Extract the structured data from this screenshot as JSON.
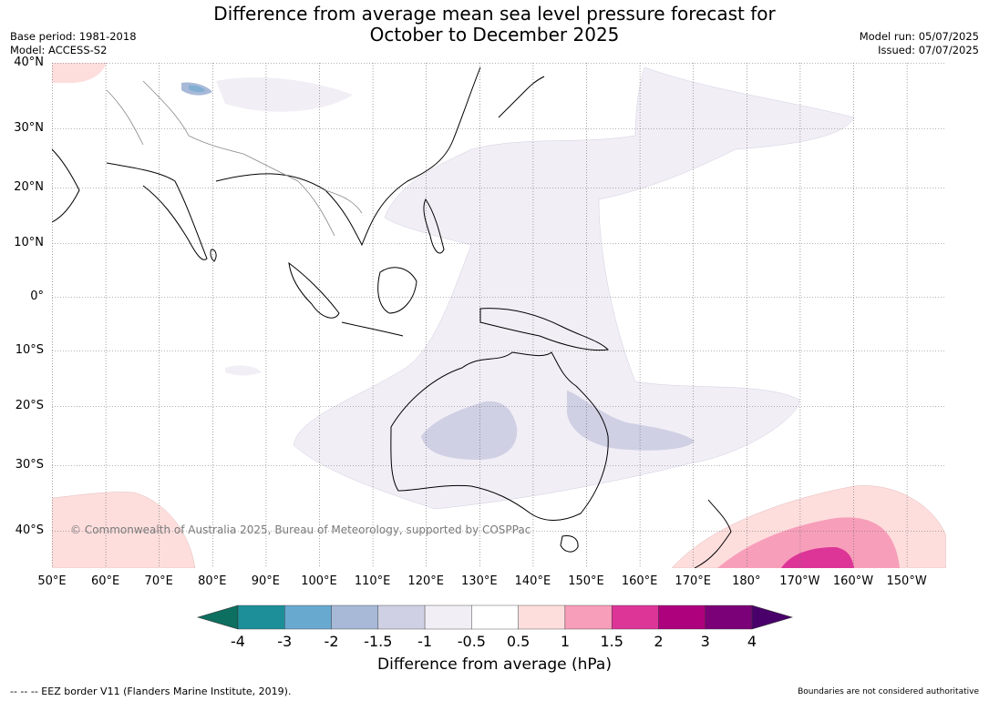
{
  "header": {
    "title_line1": "Difference from average mean sea level pressure forecast for",
    "title_line2": "October to December 2025",
    "base_period": "Base period: 1981-2018",
    "model": "Model: ACCESS-S2",
    "model_run": "Model run: 05/07/2025",
    "issued": "Issued: 07/07/2025"
  },
  "map": {
    "lat_labels": [
      "40°N",
      "30°N",
      "20°N",
      "10°N",
      "0°",
      "10°S",
      "20°S",
      "30°S",
      "40°S"
    ],
    "lon_labels": [
      "50°E",
      "60°E",
      "70°E",
      "80°E",
      "90°E",
      "100°E",
      "110°E",
      "120°E",
      "130°E",
      "140°E",
      "150°E",
      "160°E",
      "170°E",
      "180°",
      "170°W",
      "160°W",
      "150°W"
    ],
    "copyright": "© Commonwealth of Australia 2025, Bureau of Meteorology, supported by COSPPac",
    "colors": {
      "ocean": "#ffffff",
      "coast": "#000000",
      "border": "#888888",
      "grid": "#555555",
      "neg_0_5": "#f2eef6",
      "neg_1": "#cfd0e4",
      "neg_1_5": "#a8b9d8",
      "neg_2": "#68a9d0",
      "pos_0_5": "#fddedd",
      "pos_1": "#f79eba",
      "pos_1_5": "#dd3597"
    }
  },
  "colorbar": {
    "ticks": [
      "-4",
      "-3",
      "-2",
      "-1.5",
      "-1",
      "-0.5",
      "0.5",
      "1",
      "1.5",
      "2",
      "3",
      "4"
    ],
    "colors": [
      "#0d6f5f",
      "#1c8f98",
      "#68a9d0",
      "#a8b9d8",
      "#cfd0e4",
      "#f2eef6",
      "#ffffff",
      "#fddedd",
      "#f79eba",
      "#dd3597",
      "#ae017e",
      "#7a0177",
      "#49006a"
    ],
    "label": "Difference from average (hPa)"
  },
  "footer": {
    "eez_note": "--  --  -- EEZ border V11 (Flanders Marine Institute, 2019).",
    "disclaimer": "Boundaries are not considered authoritative"
  }
}
